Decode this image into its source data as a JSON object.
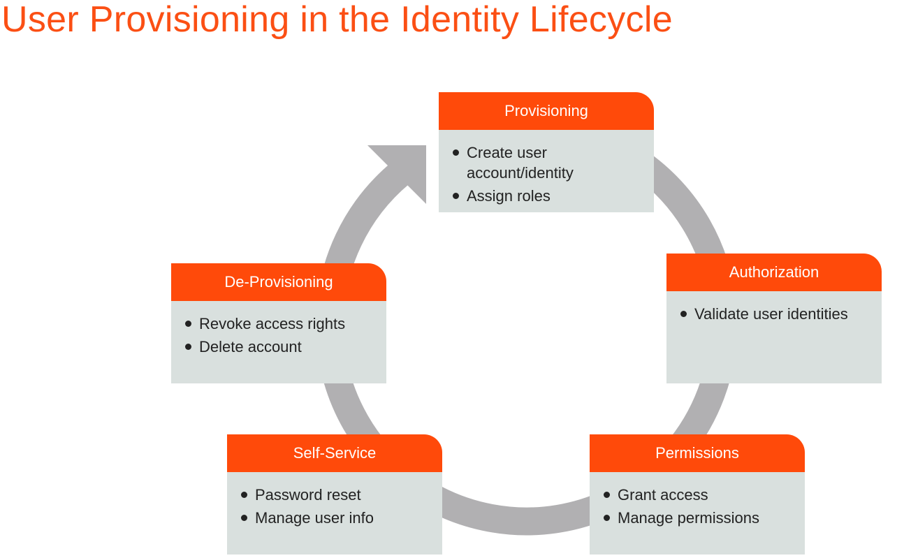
{
  "title": "User Provisioning in the Identity Lifecycle",
  "colors": {
    "accent": "#fb4f14",
    "card_header": "#ff4a0a",
    "card_body": "#d9e0de",
    "cycle_arrow": "#b1b0b2"
  },
  "stages": [
    {
      "id": "provisioning",
      "title": "Provisioning",
      "items": [
        "Create user account/identity",
        "Assign roles"
      ]
    },
    {
      "id": "authorization",
      "title": "Authorization",
      "items": [
        "Validate user identities"
      ]
    },
    {
      "id": "permissions",
      "title": "Permissions",
      "items": [
        "Grant access",
        "Manage permissions"
      ]
    },
    {
      "id": "self-service",
      "title": "Self-Service",
      "items": [
        "Password reset",
        "Manage user info"
      ]
    },
    {
      "id": "de-provisioning",
      "title": "De-Provisioning",
      "items": [
        "Revoke access rights",
        "Delete account"
      ]
    }
  ]
}
